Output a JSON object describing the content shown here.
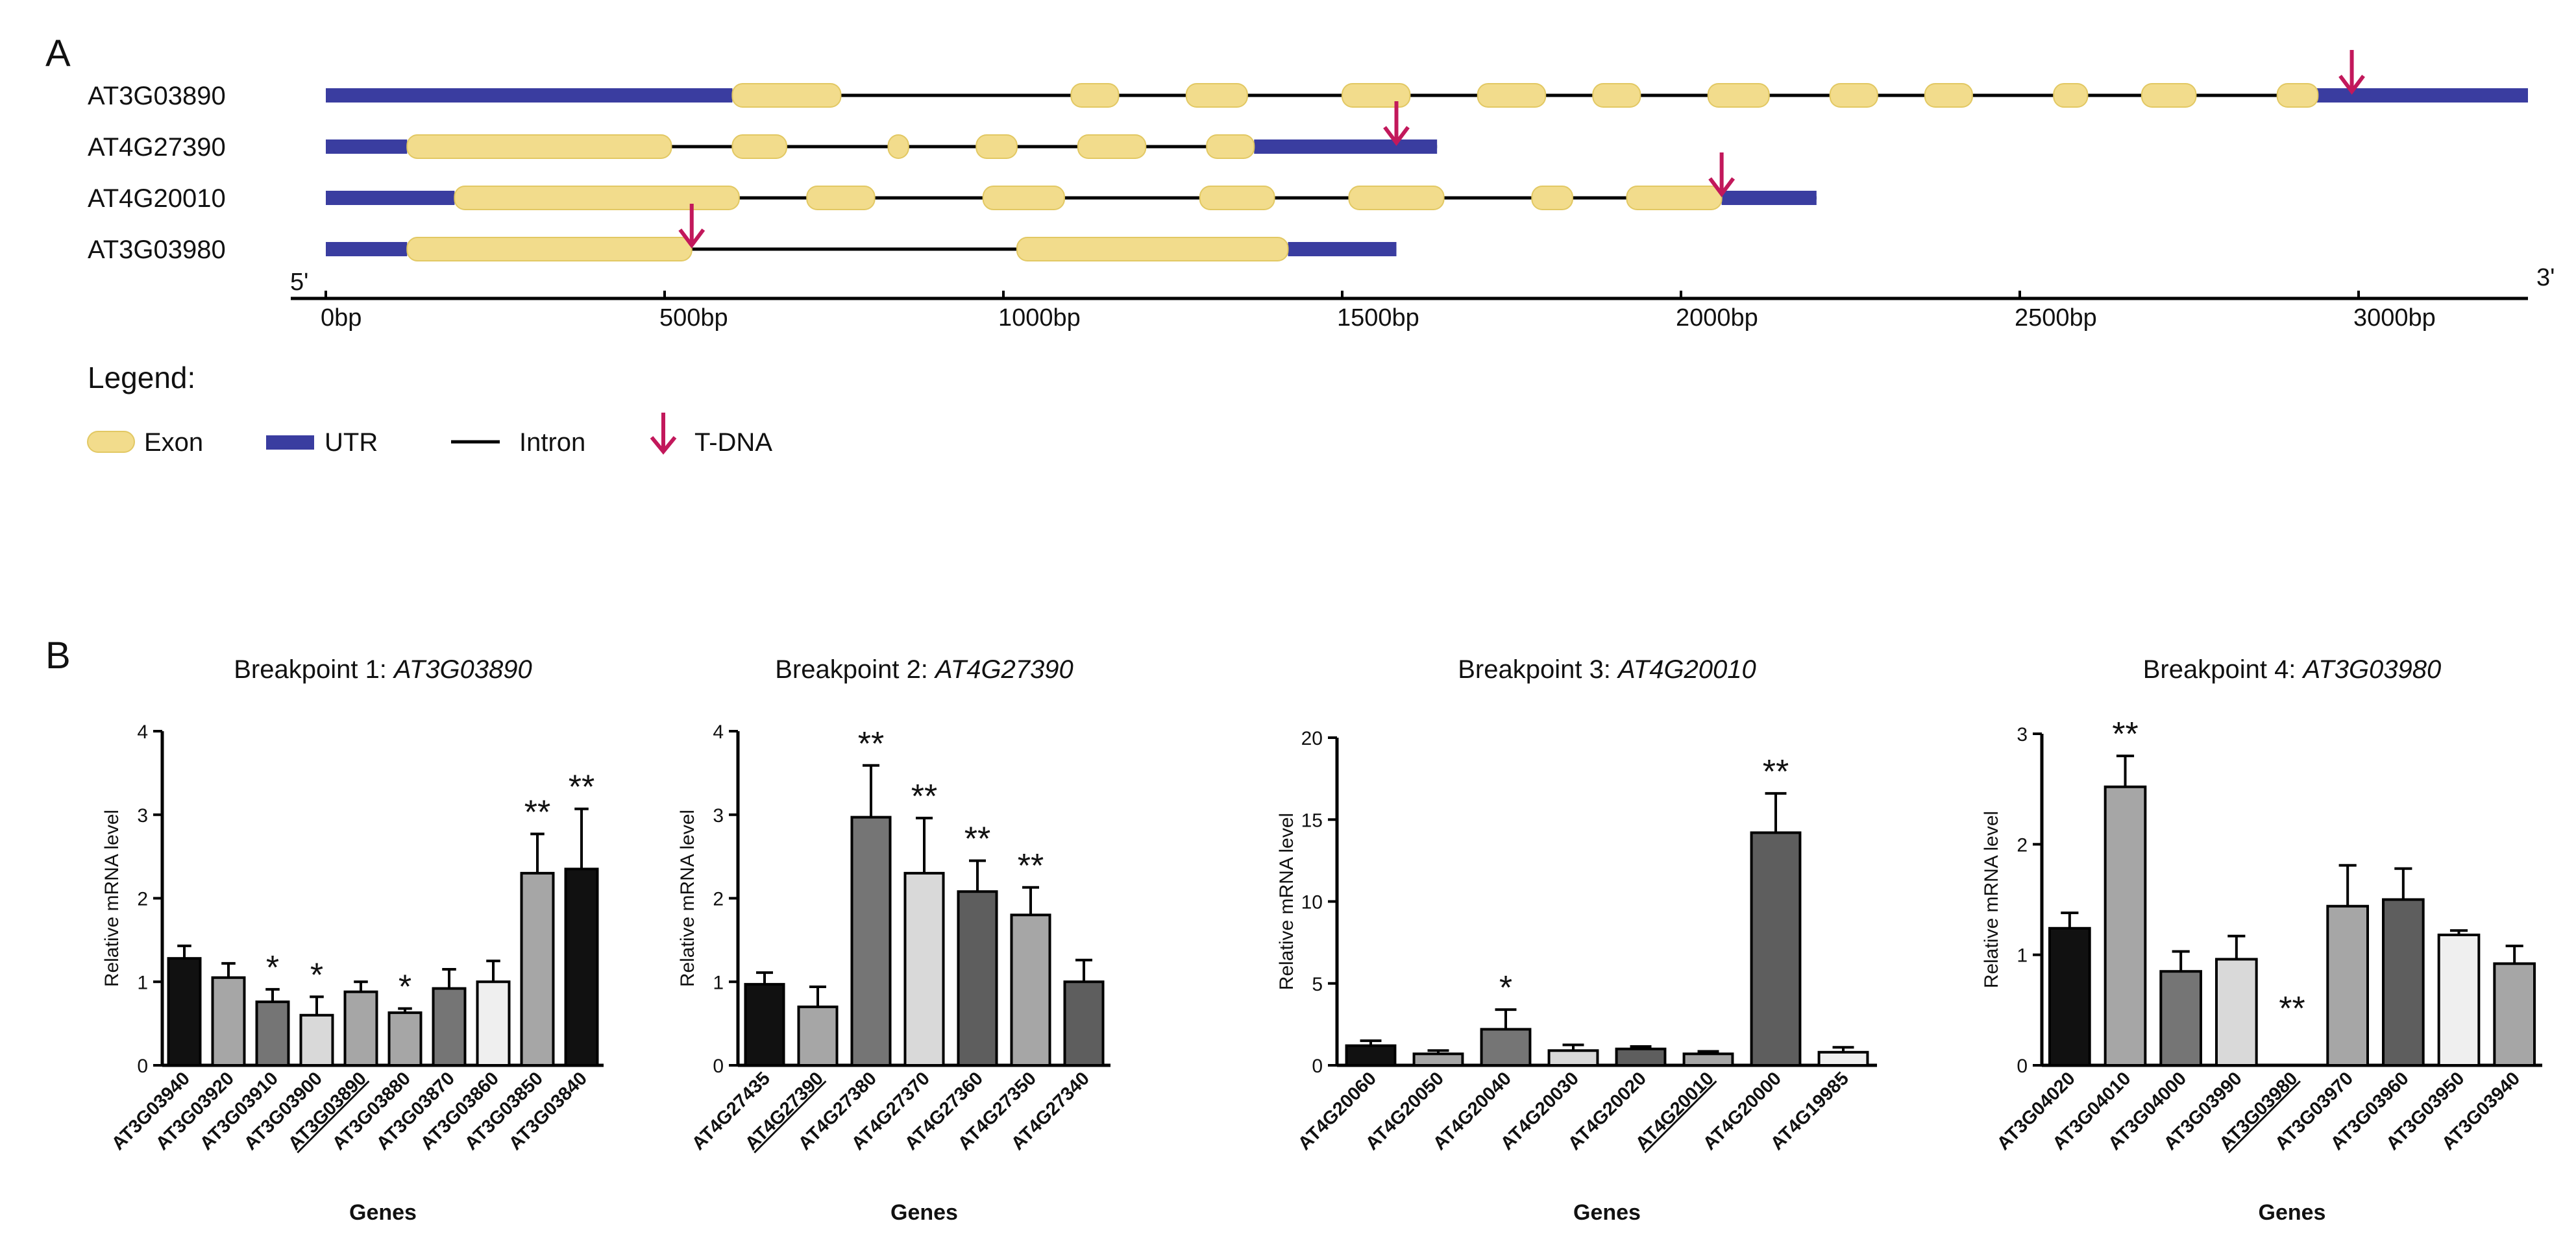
{
  "panel_a": {
    "letter": "A",
    "end5": "5'",
    "end3": "3'",
    "legend_title": "Legend:",
    "legend": {
      "exon": "Exon",
      "utr": "UTR",
      "intron": "Intron",
      "tdna": "T-DNA"
    },
    "colors": {
      "exon": "#F2DC8C",
      "utr": "#3A3DA0",
      "intron": "#000000",
      "tdna": "#C2185B"
    }
  },
  "panel_b": {
    "letter": "B",
    "xlabel": "Genes",
    "ylabel": "Relative mRNA level"
  },
  "chart_data": [
    {
      "type": "gene_structure",
      "axis_unit": "bp",
      "axis_range": [
        0,
        3250
      ],
      "axis_ticks": [
        0,
        500,
        1000,
        1500,
        2000,
        2500,
        3000
      ],
      "axis_tick_labels": [
        "0bp",
        "500bp",
        "1000bp",
        "1500bp",
        "2000bp",
        "2500bp",
        "3000bp"
      ],
      "genes": [
        {
          "name": "AT3G03890",
          "start": 0,
          "end": 3250,
          "utr": [
            [
              0,
              600
            ],
            [
              2930,
              3250
            ]
          ],
          "exons": [
            [
              600,
              760
            ],
            [
              1100,
              1170
            ],
            [
              1270,
              1360
            ],
            [
              1500,
              1600
            ],
            [
              1700,
              1800
            ],
            [
              1870,
              1940
            ],
            [
              2040,
              2130
            ],
            [
              2220,
              2290
            ],
            [
              2360,
              2430
            ],
            [
              2550,
              2600
            ],
            [
              2680,
              2760
            ],
            [
              2880,
              2940
            ]
          ],
          "tdna": 2990
        },
        {
          "name": "AT4G27390",
          "start": 0,
          "end": 1640,
          "utr": [
            [
              0,
              120
            ],
            [
              1370,
              1640
            ]
          ],
          "exons": [
            [
              120,
              510
            ],
            [
              600,
              680
            ],
            [
              830,
              860
            ],
            [
              960,
              1020
            ],
            [
              1110,
              1210
            ],
            [
              1300,
              1370
            ]
          ],
          "tdna": 1580
        },
        {
          "name": "AT4G20010",
          "start": 0,
          "end": 2200,
          "utr": [
            [
              0,
              190
            ],
            [
              2060,
              2200
            ]
          ],
          "exons": [
            [
              190,
              610
            ],
            [
              710,
              810
            ],
            [
              970,
              1090
            ],
            [
              1290,
              1400
            ],
            [
              1510,
              1650
            ],
            [
              1780,
              1840
            ],
            [
              1920,
              2060
            ]
          ],
          "tdna": 2060
        },
        {
          "name": "AT3G03980",
          "start": 0,
          "end": 1580,
          "utr": [
            [
              0,
              120
            ],
            [
              1420,
              1580
            ]
          ],
          "exons": [
            [
              120,
              540
            ],
            [
              1020,
              1420
            ]
          ],
          "tdna": 540
        }
      ]
    },
    {
      "type": "bar",
      "title": "Breakpoint 1: ",
      "title_italic": "AT3G03890",
      "xlabel": "Genes",
      "ylabel": "Relative mRNA level",
      "ylim": [
        0,
        4
      ],
      "yticks": [
        0,
        1,
        2,
        3,
        4
      ],
      "categories": [
        "AT3G03940",
        "AT3G03920",
        "AT3G03910",
        "AT3G03900",
        "AT3G03890",
        "AT3G03880",
        "AT3G03870",
        "AT3G03860",
        "AT3G03850",
        "AT3G03840"
      ],
      "values": [
        1.28,
        1.05,
        0.76,
        0.6,
        0.88,
        0.63,
        0.92,
        1.0,
        2.3,
        2.35
      ],
      "errors": [
        0.15,
        0.17,
        0.15,
        0.22,
        0.12,
        0.05,
        0.23,
        0.25,
        0.47,
        0.72
      ],
      "significance": [
        "",
        "",
        "*",
        "*",
        "",
        "*",
        "",
        "",
        "**",
        "**"
      ],
      "underlined": [
        "AT3G03890"
      ],
      "colors": [
        "#111111",
        "#A6A6A6",
        "#757575",
        "#D9D9D9",
        "#A6A6A6",
        "#A6A6A6",
        "#757575",
        "#EFEFEF",
        "#A6A6A6",
        "#111111"
      ]
    },
    {
      "type": "bar",
      "title": "Breakpoint 2: ",
      "title_italic": "AT4G27390",
      "xlabel": "Genes",
      "ylabel": "Relative mRNA level",
      "ylim": [
        0,
        4
      ],
      "yticks": [
        0,
        1,
        2,
        3,
        4
      ],
      "categories": [
        "AT4G27435",
        "AT4G27390",
        "AT4G27380",
        "AT4G27370",
        "AT4G27360",
        "AT4G27350",
        "AT4G27340"
      ],
      "values": [
        0.97,
        0.7,
        2.97,
        2.3,
        2.08,
        1.8,
        1.0
      ],
      "errors": [
        0.14,
        0.24,
        0.62,
        0.66,
        0.37,
        0.33,
        0.26
      ],
      "significance": [
        "",
        "",
        "**",
        "**",
        "**",
        "**",
        ""
      ],
      "underlined": [
        "AT4G27390"
      ],
      "colors": [
        "#111111",
        "#A6A6A6",
        "#757575",
        "#D9D9D9",
        "#5E5E5E",
        "#A6A6A6",
        "#5E5E5E"
      ]
    },
    {
      "type": "bar",
      "title": "Breakpoint 3: ",
      "title_italic": "AT4G20010",
      "xlabel": "Genes",
      "ylabel": "Relative mRNA level",
      "ylim": [
        0,
        20
      ],
      "yticks": [
        0,
        5,
        10,
        15,
        20
      ],
      "categories": [
        "AT4G20060",
        "AT4G20050",
        "AT4G20040",
        "AT4G20030",
        "AT4G20020",
        "AT4G20010",
        "AT4G20000",
        "AT4G19985"
      ],
      "values": [
        1.2,
        0.7,
        2.2,
        0.9,
        1.0,
        0.7,
        14.2,
        0.8
      ],
      "errors": [
        0.3,
        0.2,
        1.2,
        0.35,
        0.15,
        0.15,
        2.4,
        0.3
      ],
      "significance": [
        "",
        "",
        "*",
        "",
        "",
        "",
        "**",
        ""
      ],
      "underlined": [
        "AT4G20010"
      ],
      "colors": [
        "#111111",
        "#A6A6A6",
        "#757575",
        "#D9D9D9",
        "#5E5E5E",
        "#A6A6A6",
        "#5E5E5E",
        "#EFEFEF"
      ]
    },
    {
      "type": "bar",
      "title": "Breakpoint 4: ",
      "title_italic": "AT3G03980",
      "xlabel": "Genes",
      "ylabel": "Relative mRNA level",
      "ylim": [
        0,
        3
      ],
      "yticks": [
        0,
        1,
        2,
        3
      ],
      "categories": [
        "AT3G04020",
        "AT3G04010",
        "AT3G04000",
        "AT3G03990",
        "AT3G03980",
        "AT3G03970",
        "AT3G03960",
        "AT3G03950",
        "AT3G03940"
      ],
      "values": [
        1.24,
        2.52,
        0.85,
        0.96,
        0.0,
        1.44,
        1.5,
        1.18,
        0.92
      ],
      "errors": [
        0.14,
        0.28,
        0.18,
        0.21,
        0.0,
        0.37,
        0.28,
        0.04,
        0.16
      ],
      "significance": [
        "",
        "**",
        "",
        "",
        "**",
        "",
        "",
        "",
        ""
      ],
      "underlined": [
        "AT3G03980"
      ],
      "colors": [
        "#111111",
        "#A6A6A6",
        "#757575",
        "#D9D9D9",
        "#5E5E5E",
        "#A6A6A6",
        "#5E5E5E",
        "#EFEFEF",
        "#A6A6A6"
      ]
    }
  ]
}
